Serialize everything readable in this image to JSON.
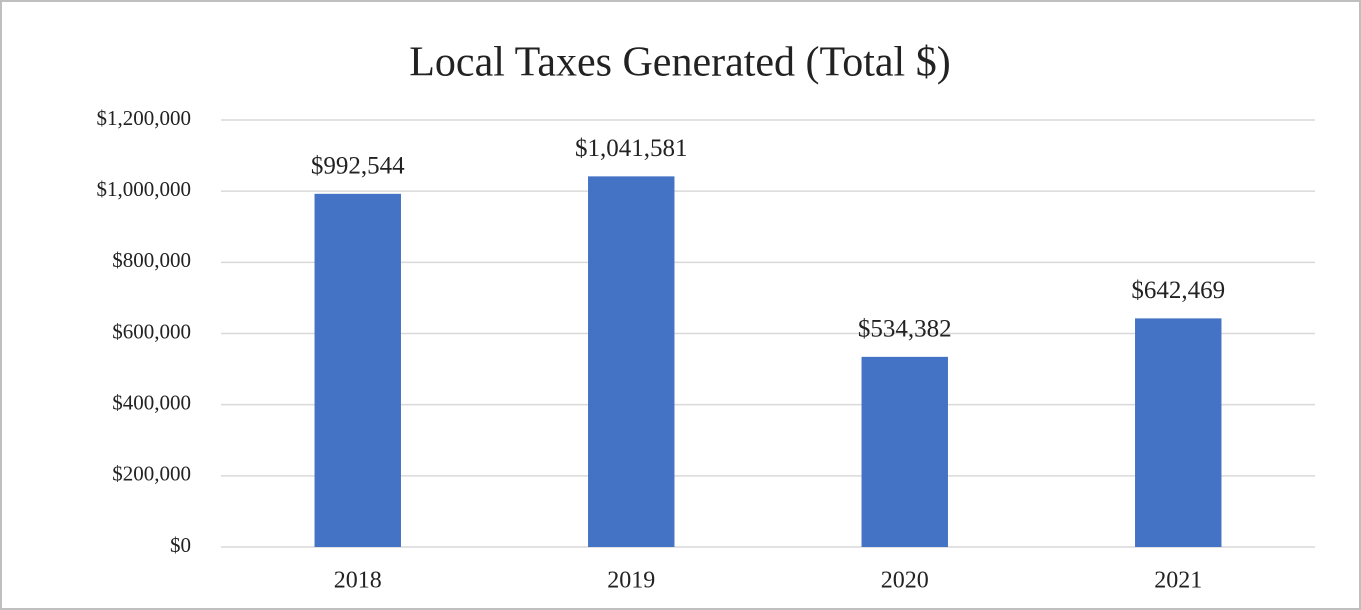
{
  "chart_data": {
    "type": "bar",
    "title": "Local Taxes Generated (Total $)",
    "categories": [
      "2018",
      "2019",
      "2020",
      "2021"
    ],
    "values": [
      992544,
      1041581,
      534382,
      642469
    ],
    "value_labels": [
      "$992,544",
      "$1,041,581",
      "$534,382",
      "$642,469"
    ],
    "color": "#4472c4",
    "ylim": [
      0,
      1200000
    ],
    "yticks": [
      {
        "value": 0,
        "label": "$0"
      },
      {
        "value": 200000,
        "label": "$200,000"
      },
      {
        "value": 400000,
        "label": "$400,000"
      },
      {
        "value": 600000,
        "label": "$600,000"
      },
      {
        "value": 800000,
        "label": "$800,000"
      },
      {
        "value": 1000000,
        "label": "$1,000,000"
      },
      {
        "value": 1200000,
        "label": "$1,200,000"
      }
    ],
    "grid": true
  }
}
